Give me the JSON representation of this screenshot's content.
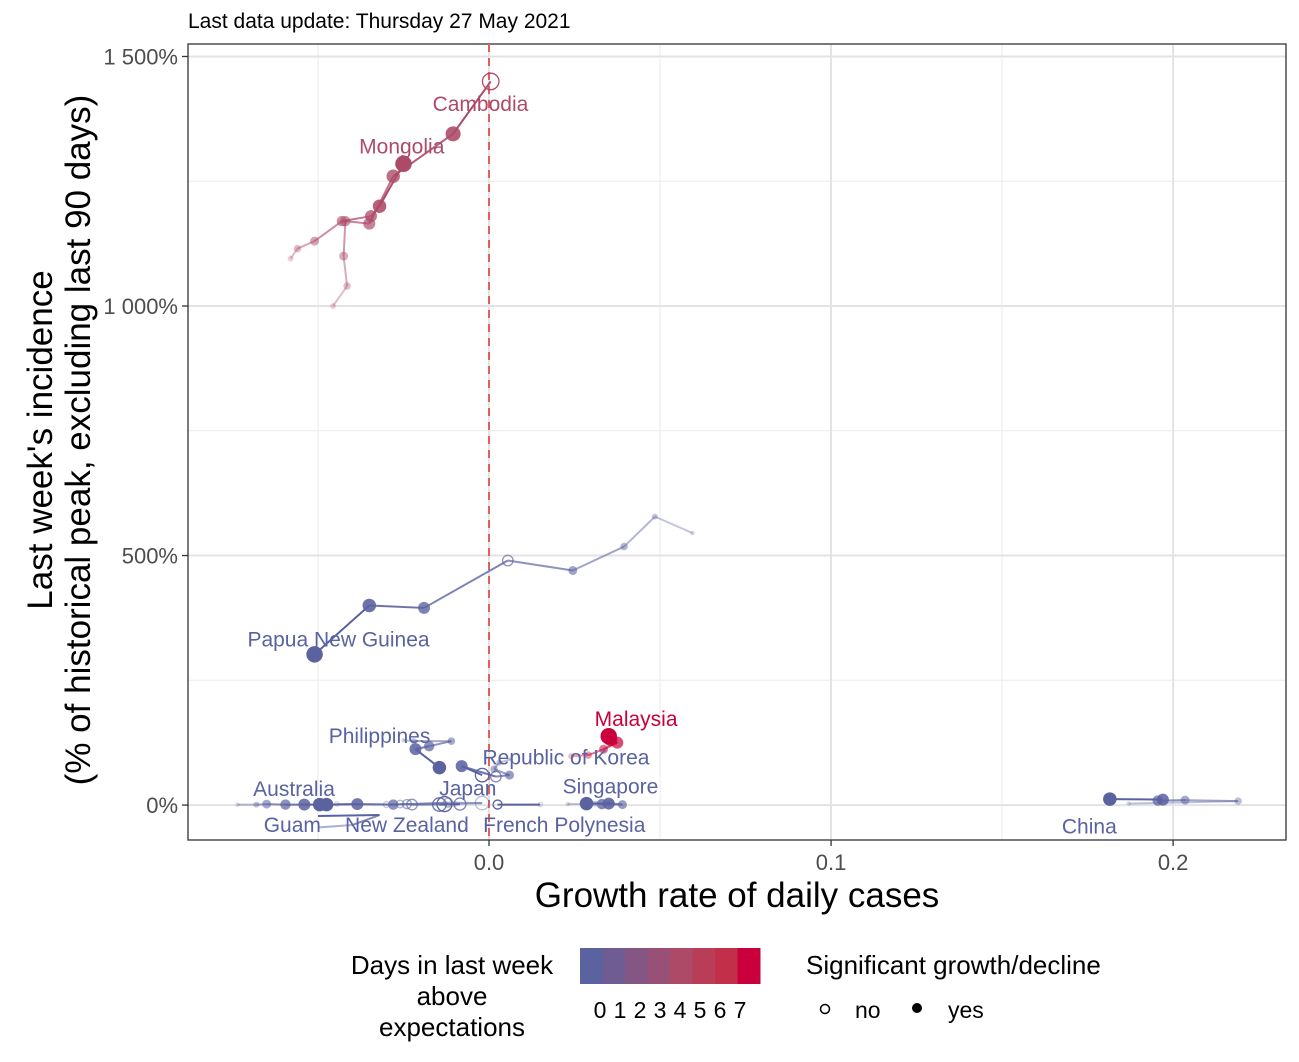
{
  "chart_data": {
    "type": "scatter",
    "subtitle": "Last data update: Thursday 27 May 2021",
    "xlabel": "Growth rate of daily cases",
    "ylabel_lines": [
      "Last week's incidence",
      "(% of historical peak, excluding last 90 days)"
    ],
    "xlim": [
      -0.088,
      0.233
    ],
    "ylim": [
      -70,
      1525
    ],
    "x_ticks": [
      0.0,
      0.1,
      0.2
    ],
    "x_tick_labels": [
      "0.0",
      "0.1",
      "0.2"
    ],
    "y_ticks": [
      0,
      500,
      1000,
      1500
    ],
    "y_tick_labels": [
      "0%",
      "500%",
      "1 000%",
      "1 500%"
    ],
    "reference_line_x": 0,
    "grid": true,
    "colors": {
      "d0": "#5a62a0",
      "d1": "#6e5c92",
      "d2": "#835684",
      "d3": "#985076",
      "d4": "#ad4a68",
      "d5": "#b93d56",
      "d6": "#c22f48",
      "d7": "#c9003b",
      "reference_line": "#e06060"
    },
    "legend": {
      "days_title": "Days in last week above expectations",
      "days_title_lines": [
        "Days in last week",
        "above",
        "expectations"
      ],
      "days_labels": [
        "0",
        "1",
        "2",
        "3",
        "4",
        "5",
        "6",
        "7"
      ],
      "sig_title": "Significant growth/decline",
      "sig_labels": [
        "no",
        "yes"
      ]
    },
    "series": [
      {
        "name": "Cambodia",
        "color": "d4",
        "points": [
          [
            -0.0456,
            1000
          ],
          [
            -0.0415,
            1040
          ],
          [
            -0.0425,
            1100
          ],
          [
            -0.042,
            1170
          ],
          [
            -0.035,
            1165
          ],
          [
            -0.028,
            1260
          ],
          [
            -0.0105,
            1345
          ],
          [
            0.0005,
            1450
          ]
        ],
        "sig": [
          1,
          1,
          1,
          1,
          1,
          1,
          1,
          0
        ],
        "sizes": [
          4,
          5,
          6,
          7,
          8,
          9,
          10,
          11
        ],
        "label": {
          "text": "Cambodia",
          "x": -0.0025,
          "y": 1405
        }
      },
      {
        "name": "Mongolia",
        "color": "d4",
        "points": [
          [
            -0.058,
            1095
          ],
          [
            -0.056,
            1115
          ],
          [
            -0.051,
            1130
          ],
          [
            -0.043,
            1170
          ],
          [
            -0.0345,
            1180
          ],
          [
            -0.032,
            1200
          ],
          [
            -0.025,
            1285
          ]
        ],
        "sig": [
          1,
          1,
          1,
          1,
          1,
          1,
          1
        ],
        "sizes": [
          4,
          5,
          6,
          7,
          8,
          9,
          11
        ],
        "label": {
          "text": "Mongolia",
          "x": -0.0255,
          "y": 1320
        }
      },
      {
        "name": "Papua New Guinea",
        "color": "d0",
        "points": [
          [
            0.0595,
            545
          ],
          [
            0.0485,
            578
          ],
          [
            0.0395,
            518
          ],
          [
            0.0245,
            470
          ],
          [
            0.0055,
            490
          ],
          [
            -0.019,
            395
          ],
          [
            -0.035,
            400
          ],
          [
            -0.051,
            302
          ]
        ],
        "sig": [
          1,
          1,
          1,
          1,
          0,
          1,
          1,
          1
        ],
        "sizes": [
          3,
          4,
          5,
          6,
          7,
          8,
          9,
          11
        ],
        "label": {
          "text": "Papua New Guinea",
          "x": -0.044,
          "y": 332
        }
      },
      {
        "name": "Malaysia",
        "color": "d7",
        "points": [
          [
            0.024,
            98
          ],
          [
            0.029,
            100
          ],
          [
            0.0335,
            112
          ],
          [
            0.0375,
            125
          ],
          [
            0.0355,
            132
          ],
          [
            0.035,
            138
          ]
        ],
        "sig": [
          1,
          1,
          1,
          1,
          1,
          1
        ],
        "sizes": [
          4,
          5,
          6,
          8,
          9,
          11
        ],
        "label": {
          "text": "Malaysia",
          "x": 0.043,
          "y": 172
        }
      },
      {
        "name": "Philippines",
        "color": "d0",
        "points": [
          [
            -0.025,
            130
          ],
          [
            -0.022,
            128
          ],
          [
            -0.011,
            128
          ],
          [
            -0.0175,
            118
          ],
          [
            -0.0215,
            112
          ],
          [
            -0.0145,
            75
          ]
        ],
        "sig": [
          1,
          1,
          1,
          1,
          1,
          1
        ],
        "sizes": [
          3,
          4,
          5,
          7,
          8,
          9
        ],
        "label": {
          "text": "Philippines",
          "x": -0.032,
          "y": 138
        }
      },
      {
        "name": "Republic of Korea",
        "color": "d0",
        "points": [
          [
            0.0065,
            92
          ],
          [
            0.003,
            85
          ],
          [
            0.0015,
            72
          ],
          [
            0.006,
            60
          ],
          [
            0.002,
            57
          ],
          [
            -0.008,
            78
          ],
          [
            -0.002,
            60
          ]
        ],
        "sig": [
          1,
          1,
          1,
          1,
          0,
          1,
          0
        ],
        "sizes": [
          3,
          4,
          5,
          6,
          7,
          8,
          9
        ],
        "label": {
          "text": "Republic of Korea",
          "x": 0.0225,
          "y": 95
        }
      },
      {
        "name": "Australia",
        "color": "d0",
        "points": [
          [
            -0.0735,
            1
          ],
          [
            -0.068,
            1
          ],
          [
            -0.065,
            2
          ],
          [
            -0.0595,
            1
          ],
          [
            -0.054,
            1
          ],
          [
            -0.0495,
            1
          ]
        ],
        "sig": [
          1,
          1,
          1,
          1,
          1,
          1
        ],
        "sizes": [
          3,
          4,
          6,
          7,
          8,
          9
        ],
        "label": {
          "text": "Australia",
          "x": -0.057,
          "y": 32
        }
      },
      {
        "name": "Guam",
        "color": "d0",
        "points": [
          [
            -0.05,
            -45
          ],
          [
            -0.04,
            -40
          ],
          [
            -0.032,
            -20
          ],
          [
            -0.05,
            -22
          ]
        ],
        "sig": [
          1,
          1,
          1,
          1
        ],
        "sizes": [
          0,
          0,
          0,
          0
        ],
        "label": {
          "text": "Guam",
          "x": -0.0575,
          "y": -40
        }
      },
      {
        "name": "New Zealand",
        "color": "d0",
        "points": [
          [
            -0.0445,
            2
          ],
          [
            -0.03,
            1
          ],
          [
            -0.026,
            2
          ],
          [
            -0.024,
            2
          ],
          [
            -0.0225,
            1
          ],
          [
            -0.0085,
            2
          ],
          [
            -0.0145,
            1
          ],
          [
            -0.013,
            2
          ]
        ],
        "sig": [
          0,
          0,
          0,
          0,
          0,
          0,
          0,
          0
        ],
        "sizes": [
          3,
          4,
          5,
          6,
          7,
          8,
          9,
          10
        ],
        "label": {
          "text": "New Zealand",
          "x": -0.024,
          "y": -40
        }
      },
      {
        "name": "Japan",
        "color": "d0",
        "points": [
          [
            -0.01,
            2
          ],
          [
            -0.002,
            4
          ],
          [
            -0.012,
            5
          ],
          [
            -0.028,
            1
          ],
          [
            -0.0385,
            2
          ],
          [
            -0.0475,
            1
          ]
        ],
        "sig": [
          1,
          0,
          0,
          1,
          1,
          1
        ],
        "sizes": [
          4,
          9,
          6,
          7,
          8,
          9
        ],
        "label": {
          "text": "Japan",
          "x": -0.0062,
          "y": 33
        }
      },
      {
        "name": "French Polynesia",
        "color": "d0",
        "points": [
          [
            0.015,
            1
          ],
          [
            0.0025,
            1
          ]
        ],
        "sig": [
          0,
          0
        ],
        "sizes": [
          3,
          6
        ],
        "label": {
          "text": "French Polynesia",
          "x": 0.022,
          "y": -40
        }
      },
      {
        "name": "Singapore",
        "color": "d0",
        "points": [
          [
            0.023,
            2
          ],
          [
            0.031,
            3
          ],
          [
            0.0355,
            4
          ],
          [
            0.039,
            1
          ],
          [
            0.033,
            2
          ],
          [
            0.035,
            3
          ],
          [
            0.0285,
            3
          ]
        ],
        "sig": [
          1,
          1,
          1,
          1,
          1,
          1,
          1
        ],
        "sizes": [
          3,
          4,
          5,
          6,
          7,
          8,
          9
        ],
        "label": {
          "text": "Singapore",
          "x": 0.0355,
          "y": 37
        }
      },
      {
        "name": "China",
        "color": "d0",
        "points": [
          [
            0.187,
            3
          ],
          [
            0.219,
            8
          ],
          [
            0.2035,
            10
          ],
          [
            0.1955,
            9
          ],
          [
            0.197,
            11
          ],
          [
            0.1815,
            12
          ]
        ],
        "sig": [
          1,
          1,
          1,
          1,
          1,
          1
        ],
        "sizes": [
          3,
          5,
          6,
          7,
          8,
          9
        ],
        "label": {
          "text": "China",
          "x": 0.1755,
          "y": -43
        }
      }
    ]
  }
}
